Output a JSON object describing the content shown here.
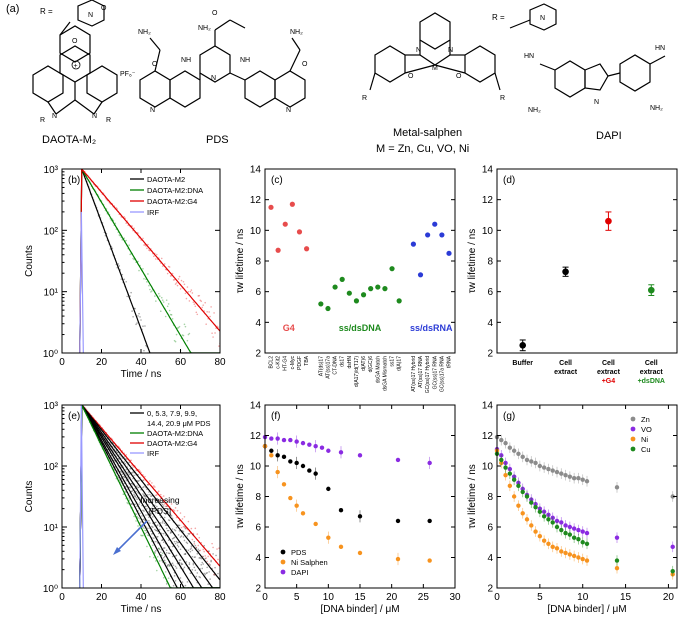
{
  "panel_labels": {
    "a": "(a)",
    "b": "(b)",
    "c": "(c)",
    "d": "(d)",
    "e": "(e)",
    "f": "(f)",
    "g": "(g)"
  },
  "structures": {
    "daota": {
      "name": "DAOTA-M₂",
      "r_label": "R =",
      "counter_ion": "PF₆⁻",
      "r_atom": "R",
      "n_atom": "N",
      "o_atom": "O",
      "o_ring": "O",
      "plus": "+"
    },
    "pds": {
      "name": "PDS",
      "amine": "NH₂",
      "amide": "NH",
      "o": "O",
      "n": "N"
    },
    "salphen": {
      "name": "Metal-salphen",
      "metals": "M = Zn, Cu, VO, Ni",
      "r_label": "R =",
      "n": "N",
      "o": "O",
      "m": "M",
      "r": "R"
    },
    "dapi": {
      "name": "DAPI",
      "nh2": "NH₂",
      "nh": "HN",
      "h": "N"
    }
  },
  "chart_data": [
    {
      "id": "b",
      "type": "line",
      "xlabel": "Time / ns",
      "ylabel": "Counts",
      "xlim": [
        0,
        80
      ],
      "ylim": [
        1,
        1000
      ],
      "yscale": "log",
      "x_ticks": [
        "0",
        "20",
        "40",
        "60",
        "80"
      ],
      "y_ticks": [
        "10⁰",
        "10¹",
        "10²",
        "10³"
      ],
      "series": [
        {
          "name": "DAOTA-M2",
          "color": "#000000",
          "tau": 5.0,
          "t0": 10,
          "A": 1000
        },
        {
          "name": "DAOTA-M2:DNA",
          "color": "#008000",
          "tau": 8.0,
          "t0": 10,
          "A": 1000
        },
        {
          "name": "DAOTA-M2:G4",
          "color": "#e00000",
          "tau": 11.5,
          "t0": 10,
          "A": 1000
        },
        {
          "name": "IRF",
          "color": "#9999ff",
          "tau": 0.3,
          "t0": 10,
          "A": 200
        }
      ]
    },
    {
      "id": "c",
      "type": "scatter",
      "ylabel": "τw lifetime / ns",
      "ylim": [
        2,
        14
      ],
      "y_ticks": [
        "2",
        "4",
        "6",
        "8",
        "10",
        "12",
        "14"
      ],
      "groups": [
        {
          "name": "G4",
          "color": "#e74c4c",
          "points": [
            {
              "label": "BCL2",
              "value": 11.5
            },
            {
              "label": "c-Kit2",
              "value": 8.7
            },
            {
              "label": "HT-G4",
              "value": 10.4
            },
            {
              "label": "c-Myc",
              "value": 11.7
            },
            {
              "label": "PDGF",
              "value": 9.9
            },
            {
              "label": "TBA",
              "value": 8.8
            }
          ]
        },
        {
          "name": "ss/dsDNA",
          "color": "#1e8a1e",
          "points": [
            {
              "label": "AT(ds)17",
              "value": 5.2
            },
            {
              "label": "AT(ss)17a",
              "value": 4.9
            },
            {
              "label": "CT-DNA",
              "value": 6.3
            },
            {
              "label": "ds17",
              "value": 6.8
            },
            {
              "label": "dsHN",
              "value": 5.9
            },
            {
              "label": "d(A17)/d(T17)",
              "value": 5.4
            },
            {
              "label": "d(AT)6",
              "value": 5.8
            },
            {
              "label": "d(GC)6",
              "value": 6.2
            },
            {
              "label": "dsGA Match",
              "value": 6.3
            },
            {
              "label": "dsGA Mismatch",
              "value": 6.2
            },
            {
              "label": "ss17",
              "value": 7.5
            },
            {
              "label": "d(A)17",
              "value": 5.4
            }
          ]
        },
        {
          "name": "ss/dsRNA",
          "color": "#2b3bd6",
          "points": [
            {
              "label": "AT(ss)17 Hybrid",
              "value": 9.1
            },
            {
              "label": "AT(ss)17 RNA",
              "value": 7.1
            },
            {
              "label": "GC(ss)17 Hybrid",
              "value": 9.7
            },
            {
              "label": "GC(ss)17 RNA",
              "value": 10.4
            },
            {
              "label": "GC(ss)17a RNA",
              "value": 9.7
            },
            {
              "label": "tRNA",
              "value": 8.5
            }
          ]
        }
      ]
    },
    {
      "id": "d",
      "type": "scatter",
      "ylabel": "τw lifetime / ns",
      "ylim": [
        2,
        14
      ],
      "y_ticks": [
        "2",
        "4",
        "6",
        "8",
        "10",
        "12",
        "14"
      ],
      "categories": [
        "Buffer",
        "Cell extract",
        "Cell extract +G4",
        "Cell extract +dsDNA"
      ],
      "values": [
        2.5,
        7.3,
        10.6,
        6.1
      ],
      "errors": [
        0.35,
        0.3,
        0.6,
        0.35
      ],
      "colors": [
        "#000000",
        "#000000",
        "#e00000",
        "#1e8a1e"
      ],
      "category_lines": [
        [
          "Buffer"
        ],
        [
          "Cell",
          "extract"
        ],
        [
          "Cell",
          "extract",
          "+G4"
        ],
        [
          "Cell",
          "extract",
          "+dsDNA"
        ]
      ]
    },
    {
      "id": "e",
      "type": "line",
      "xlabel": "Time / ns",
      "ylabel": "Counts",
      "xlim": [
        0,
        80
      ],
      "ylim": [
        1,
        1000
      ],
      "yscale": "log",
      "x_ticks": [
        "0",
        "20",
        "40",
        "60",
        "80"
      ],
      "y_ticks": [
        "10⁰",
        "10¹",
        "10²",
        "10³"
      ],
      "legend": [
        {
          "name": "0, 5.3, 7.9, 9.9,",
          "color": "#000000"
        },
        {
          "name": "14.4, 20.9 μM PDS",
          "color": null
        },
        {
          "name": "DAOTA-M2:DNA",
          "color": "#008000"
        },
        {
          "name": "DAOTA-M2:G4",
          "color": "#e00000"
        },
        {
          "name": "IRF",
          "color": "#9999ff"
        }
      ],
      "annotation": [
        "Increasing",
        "[PDS]"
      ],
      "series": [
        {
          "name": "DAOTA-M2:G4",
          "color": "#e00000",
          "tau": 11.5
        },
        {
          "name": "0 μM PDS",
          "color": "#000000",
          "tau": 10.6
        },
        {
          "name": "5.3 μM PDS",
          "color": "#000000",
          "tau": 9.6
        },
        {
          "name": "7.9 μM PDS",
          "color": "#000000",
          "tau": 8.8
        },
        {
          "name": "9.9 μM PDS",
          "color": "#000000",
          "tau": 8.2
        },
        {
          "name": "14.4 μM PDS",
          "color": "#000000",
          "tau": 7.5
        },
        {
          "name": "20.9 μM PDS",
          "color": "#000000",
          "tau": 7.0
        },
        {
          "name": "DAOTA-M2:DNA",
          "color": "#008000",
          "tau": 6.5
        },
        {
          "name": "IRF",
          "color": "#9999ff",
          "tau": 0.3
        }
      ]
    },
    {
      "id": "f",
      "type": "scatter",
      "xlabel": "[DNA binder] / μM",
      "ylabel": "τw lifetime / ns",
      "xlim": [
        0,
        30
      ],
      "ylim": [
        2,
        14
      ],
      "x_ticks": [
        "0",
        "5",
        "10",
        "15",
        "20",
        "25",
        "30"
      ],
      "y_ticks": [
        "2",
        "4",
        "6",
        "8",
        "10",
        "12",
        "14"
      ],
      "series": [
        {
          "name": "PDS",
          "color": "#000000",
          "x": [
            0,
            1,
            2,
            3,
            4,
            5,
            6,
            7,
            8,
            10,
            12,
            15,
            21,
            26
          ],
          "y": [
            11.3,
            11.0,
            10.7,
            10.6,
            10.3,
            10.2,
            10.0,
            9.7,
            9.5,
            8.5,
            7.1,
            6.7,
            6.4,
            6.4
          ]
        },
        {
          "name": "Ni Salphen",
          "color": "#f7931e",
          "x": [
            0,
            1,
            2,
            3,
            4,
            5,
            6,
            8,
            10,
            12,
            15,
            21,
            26
          ],
          "y": [
            11.3,
            10.7,
            9.6,
            8.8,
            7.9,
            7.4,
            6.9,
            6.2,
            5.3,
            4.7,
            4.3,
            3.9,
            3.8
          ]
        },
        {
          "name": "DAPI",
          "color": "#8a2be2",
          "x": [
            0,
            1,
            2,
            3,
            4,
            5,
            6,
            7,
            8,
            9,
            10,
            12,
            15,
            21,
            26
          ],
          "y": [
            11.9,
            11.8,
            11.8,
            11.7,
            11.7,
            11.6,
            11.5,
            11.4,
            11.3,
            11.2,
            11.0,
            10.9,
            10.7,
            10.4,
            10.2
          ]
        }
      ]
    },
    {
      "id": "g",
      "type": "scatter",
      "xlabel": "[DNA binder] / μM",
      "ylabel": "τw lifetime / ns",
      "xlim": [
        0,
        21
      ],
      "ylim": [
        2,
        14
      ],
      "x_ticks": [
        "0",
        "5",
        "10",
        "15",
        "20"
      ],
      "y_ticks": [
        "2",
        "4",
        "6",
        "8",
        "10",
        "12",
        "14"
      ],
      "series": [
        {
          "name": "Zn",
          "color": "#8c8c8c",
          "x": [
            0,
            0.5,
            1,
            1.5,
            2,
            2.5,
            3,
            3.5,
            4,
            4.5,
            5,
            5.5,
            6,
            6.5,
            7,
            7.5,
            8,
            8.5,
            9,
            9.5,
            10,
            10.5,
            14,
            20.5
          ],
          "y": [
            11.9,
            11.7,
            11.5,
            11.2,
            11.0,
            10.8,
            10.6,
            10.4,
            10.3,
            10.2,
            10.0,
            9.9,
            9.8,
            9.7,
            9.6,
            9.5,
            9.4,
            9.3,
            9.2,
            9.2,
            9.1,
            9.0,
            8.6,
            8.0
          ]
        },
        {
          "name": "VO",
          "color": "#8a2be2",
          "x": [
            0,
            0.5,
            1,
            1.5,
            2,
            2.5,
            3,
            3.5,
            4,
            4.5,
            5,
            5.5,
            6,
            6.5,
            7,
            7.5,
            8,
            8.5,
            9,
            9.5,
            10,
            10.5,
            14,
            20.5
          ],
          "y": [
            11.1,
            10.7,
            10.2,
            9.8,
            9.3,
            8.9,
            8.5,
            8.1,
            7.8,
            7.5,
            7.2,
            7.0,
            6.8,
            6.6,
            6.4,
            6.3,
            6.1,
            6.0,
            5.9,
            5.8,
            5.7,
            5.6,
            5.3,
            4.7
          ]
        },
        {
          "name": "Ni",
          "color": "#f7931e",
          "x": [
            0,
            0.5,
            1,
            1.5,
            2,
            2.5,
            3,
            3.5,
            4,
            4.5,
            5,
            5.5,
            6,
            6.5,
            7,
            7.5,
            8,
            8.5,
            9,
            9.5,
            10,
            10.5,
            14,
            20.5
          ],
          "y": [
            11.0,
            10.2,
            9.4,
            8.7,
            8.0,
            7.4,
            6.9,
            6.5,
            6.1,
            5.7,
            5.4,
            5.1,
            4.9,
            4.7,
            4.6,
            4.4,
            4.3,
            4.2,
            4.1,
            4.0,
            3.9,
            3.8,
            3.3,
            2.9
          ]
        },
        {
          "name": "Cu",
          "color": "#1e8a1e",
          "x": [
            0,
            0.5,
            1,
            1.5,
            2,
            2.5,
            3,
            3.5,
            4,
            4.5,
            5,
            5.5,
            6,
            6.5,
            7,
            7.5,
            8,
            8.5,
            9,
            9.5,
            10,
            10.5,
            14,
            20.5
          ],
          "y": [
            10.8,
            10.4,
            9.9,
            9.5,
            9.1,
            8.7,
            8.3,
            8.0,
            7.6,
            7.3,
            7.0,
            6.7,
            6.5,
            6.3,
            6.0,
            5.8,
            5.6,
            5.5,
            5.3,
            5.2,
            5.0,
            4.9,
            3.8,
            3.1
          ]
        }
      ]
    }
  ]
}
